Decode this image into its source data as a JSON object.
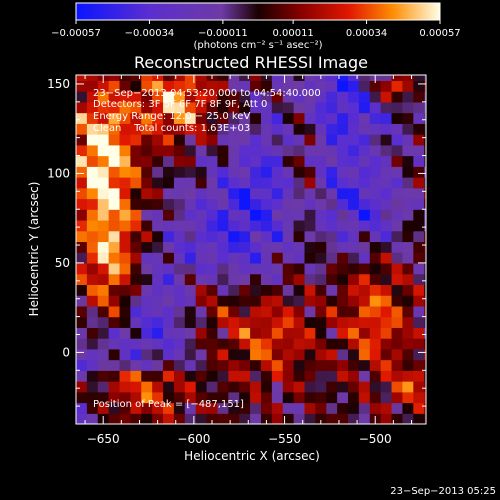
{
  "chart_data": {
    "type": "heatmap",
    "title": "Reconstructed RHESSI Image",
    "xlabel": "Heliocentric X (arcsec)",
    "ylabel": "Heliocentric Y (arcsec)",
    "xlim": [
      -665,
      -472
    ],
    "ylim": [
      -40,
      155
    ],
    "x_ticks": [
      {
        "value": -650,
        "label": "−650"
      },
      {
        "value": -600,
        "label": "−600"
      },
      {
        "value": -550,
        "label": "−550"
      },
      {
        "value": -500,
        "label": "−500"
      }
    ],
    "y_ticks": [
      {
        "value": 0,
        "label": "0"
      },
      {
        "value": 50,
        "label": "50"
      },
      {
        "value": 100,
        "label": "100"
      },
      {
        "value": 150,
        "label": "150"
      }
    ],
    "colorbar": {
      "min": -0.00057,
      "max": 0.00057,
      "ticks": [
        {
          "value": -0.00057,
          "label": "−0.00057"
        },
        {
          "value": -0.00034,
          "label": "−0.00034"
        },
        {
          "value": -0.00011,
          "label": "−0.00011"
        },
        {
          "value": 0.00011,
          "label": "0.00011"
        },
        {
          "value": 0.00034,
          "label": "0.00034"
        },
        {
          "value": 0.00057,
          "label": "0.00057"
        }
      ],
      "units_label": "(photons cm⁻² s⁻¹ asec⁻²)"
    },
    "annotations": {
      "time_range": "23−Sep−2013 04:53:20.000 to 04:54:40.000",
      "detectors": "Detectors: 3F 5F 6F 7F 8F 9F, Att 0",
      "energy_range": "Energy Range: 12.0 − 25.0 keV",
      "algorithm_counts": "Clean    Total counts: 1.63E+03",
      "peak_position": "Position of Peak = [−487,151]"
    },
    "timestamp": "23−Sep−2013 05:25",
    "peak": {
      "x": -487,
      "y": 151
    },
    "intensity_grid": {
      "x_start": -665,
      "x_step": 6,
      "cols": 33,
      "y_start": -40,
      "y_step": 6,
      "rows": 33,
      "note": "normalized intensity sampled from the image, range -1 to 1"
    }
  }
}
